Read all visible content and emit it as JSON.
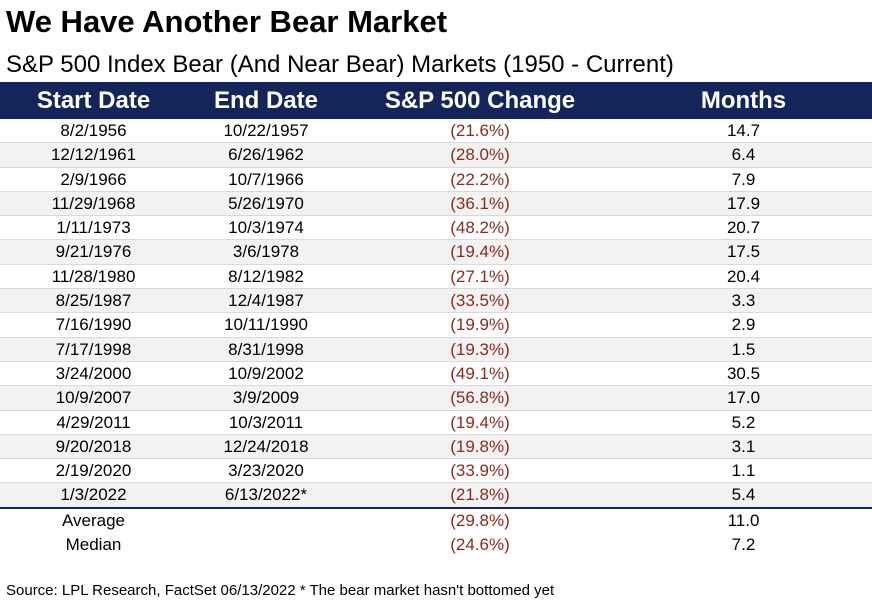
{
  "title": "We Have Another Bear Market",
  "subtitle": "S&P 500 Index Bear (And Near Bear) Markets (1950 - Current)",
  "colors": {
    "header_bg": "#14255c",
    "header_text": "#ffffff",
    "negative_text": "#8b2a1e",
    "alt_row_bg": "#f2f2f2"
  },
  "chart_data": {
    "type": "table",
    "title": "We Have Another Bear Market",
    "subtitle": "S&P 500 Index Bear (And Near Bear) Markets (1950 - Current)",
    "columns": [
      "Start Date",
      "End Date",
      "S&P 500 Change",
      "Months"
    ],
    "rows": [
      [
        "8/2/1956",
        "10/22/1957",
        "(21.6%)",
        "14.7"
      ],
      [
        "12/12/1961",
        "6/26/1962",
        "(28.0%)",
        "6.4"
      ],
      [
        "2/9/1966",
        "10/7/1966",
        "(22.2%)",
        "7.9"
      ],
      [
        "11/29/1968",
        "5/26/1970",
        "(36.1%)",
        "17.9"
      ],
      [
        "1/11/1973",
        "10/3/1974",
        "(48.2%)",
        "20.7"
      ],
      [
        "9/21/1976",
        "3/6/1978",
        "(19.4%)",
        "17.5"
      ],
      [
        "11/28/1980",
        "8/12/1982",
        "(27.1%)",
        "20.4"
      ],
      [
        "8/25/1987",
        "12/4/1987",
        "(33.5%)",
        "3.3"
      ],
      [
        "7/16/1990",
        "10/11/1990",
        "(19.9%)",
        "2.9"
      ],
      [
        "7/17/1998",
        "8/31/1998",
        "(19.3%)",
        "1.5"
      ],
      [
        "3/24/2000",
        "10/9/2002",
        "(49.1%)",
        "30.5"
      ],
      [
        "10/9/2007",
        "3/9/2009",
        "(56.8%)",
        "17.0"
      ],
      [
        "4/29/2011",
        "10/3/2011",
        "(19.4%)",
        "5.2"
      ],
      [
        "9/20/2018",
        "12/24/2018",
        "(19.8%)",
        "3.1"
      ],
      [
        "2/19/2020",
        "3/23/2020",
        "(33.9%)",
        "1.1"
      ],
      [
        "1/3/2022",
        "6/13/2022*",
        "(21.8%)",
        "5.4"
      ]
    ],
    "summary": [
      [
        "Average",
        "",
        "(29.8%)",
        "11.0"
      ],
      [
        "Median",
        "",
        "(24.6%)",
        "7.2"
      ]
    ]
  },
  "source": "Source: LPL Research, FactSet 06/13/2022  * The bear market hasn't bottomed yet"
}
